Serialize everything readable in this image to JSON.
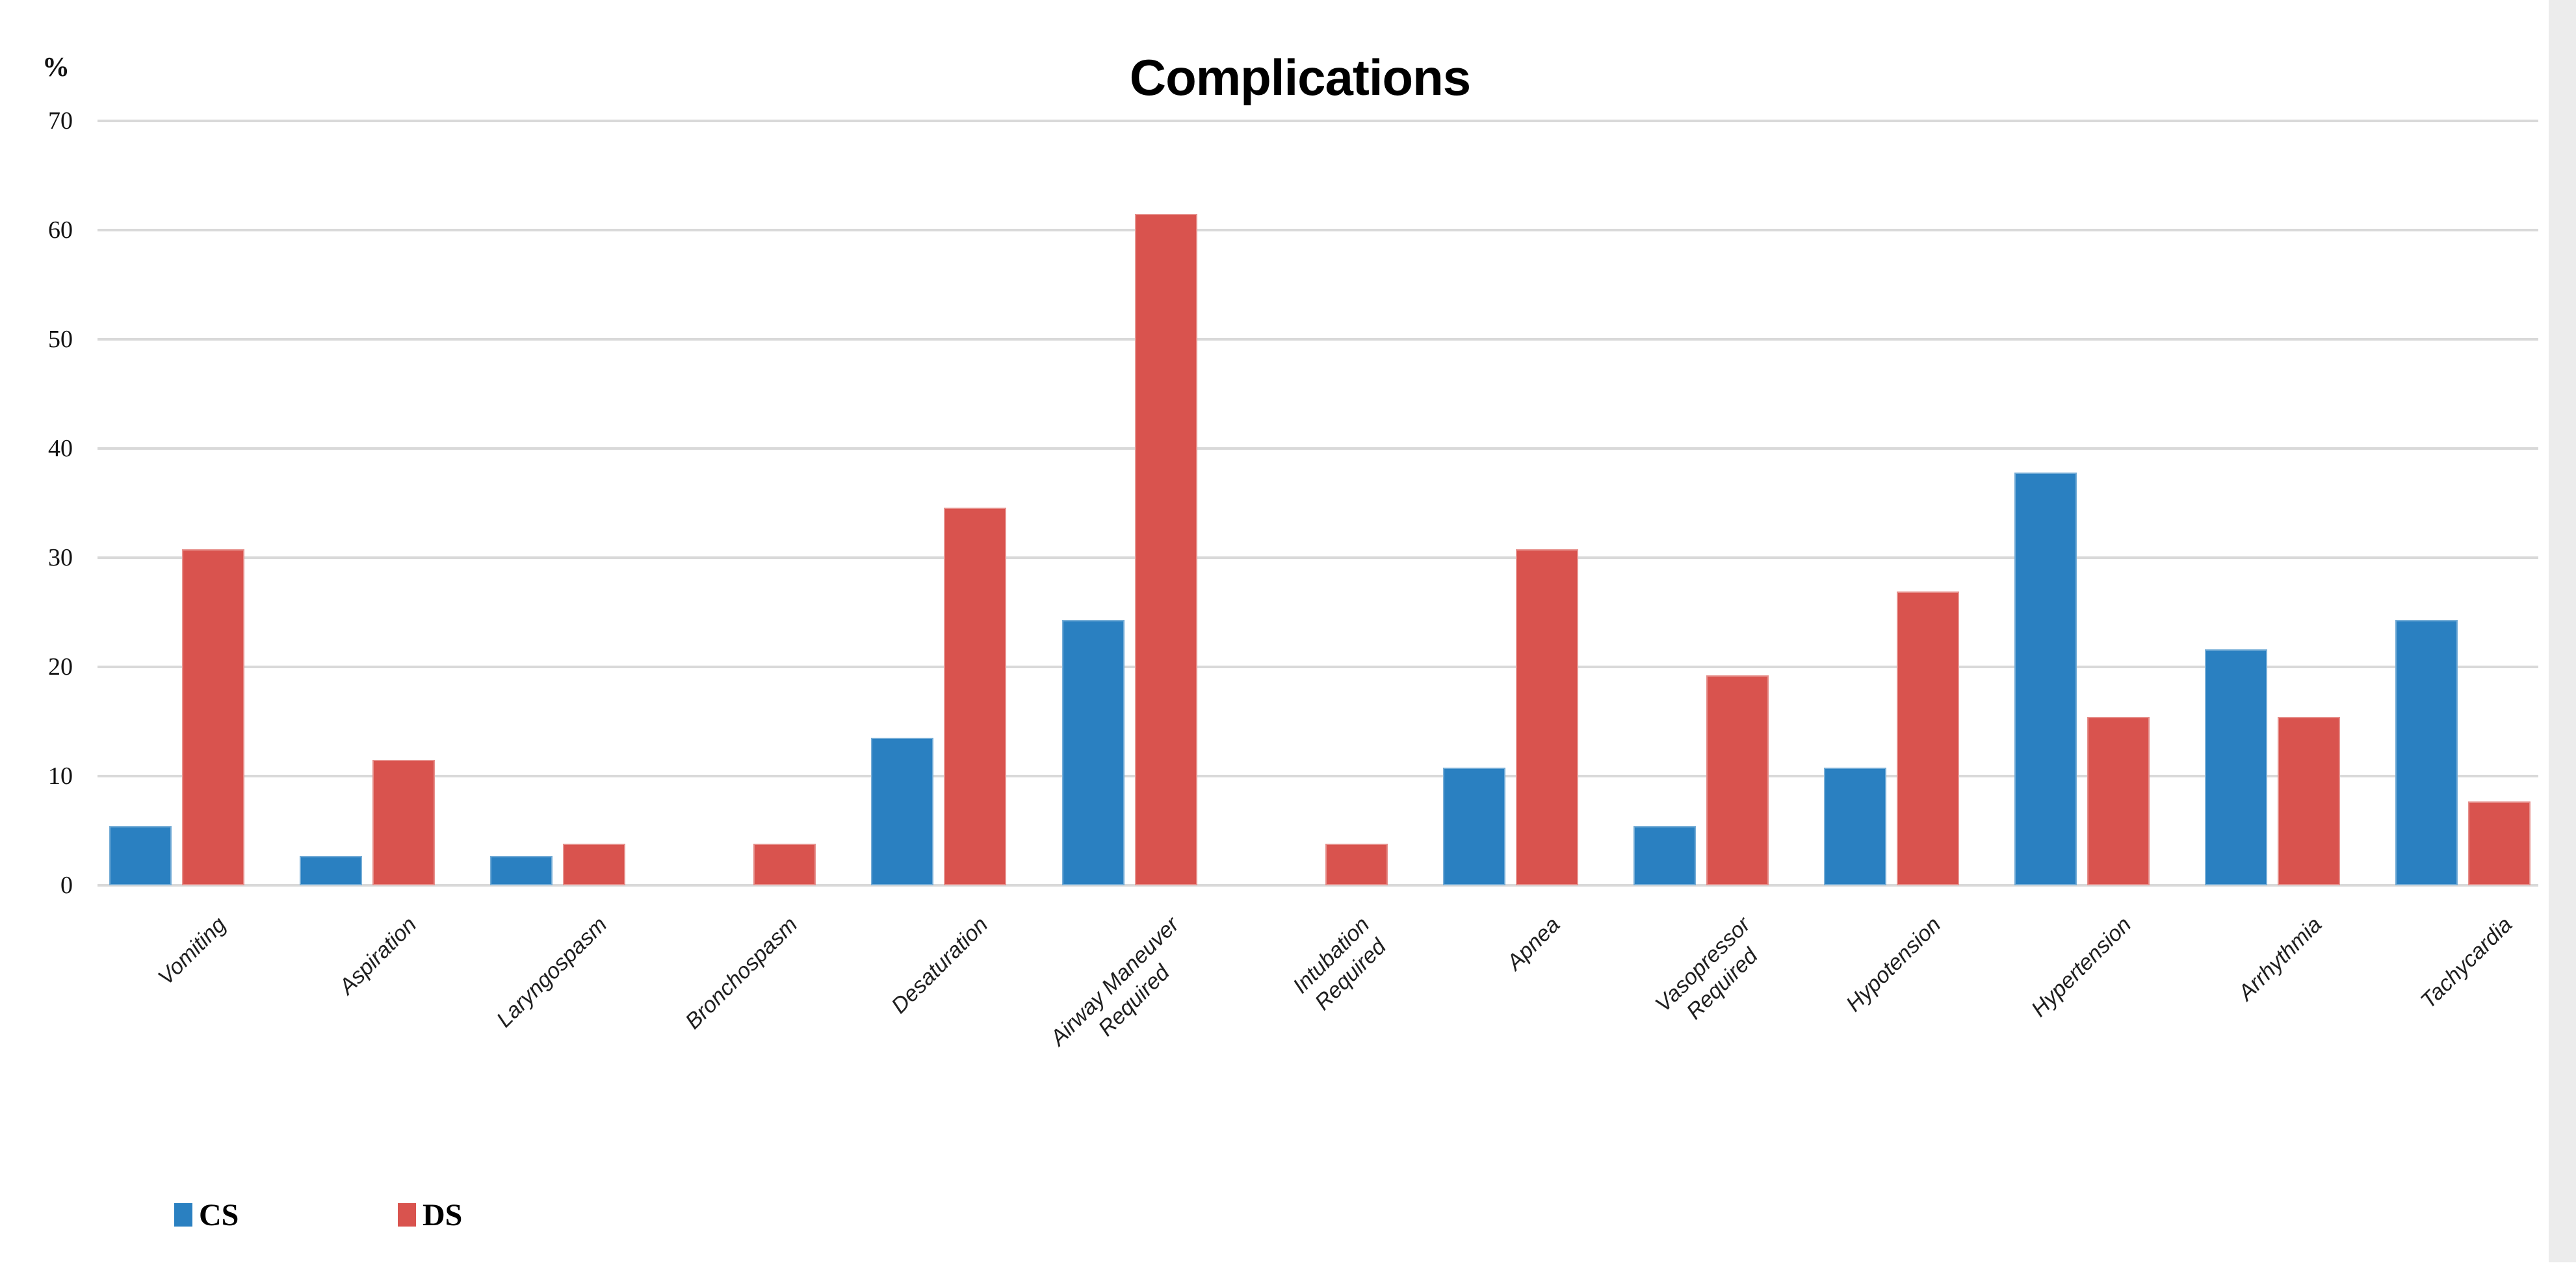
{
  "chart_data": {
    "type": "bar",
    "title": "Complications",
    "y_axis_unit_label": "%",
    "categories": [
      "Vomiting",
      "Aspiration",
      "Laryngospasm",
      "Bronchospasm",
      "Desaturation",
      "Airway Maneuver Required",
      "Intubation Required",
      "Apnea",
      "Vasopressor Required",
      "Hypotension",
      "Hypertension",
      "Arrhythmia",
      "Tachycardia"
    ],
    "category_display": [
      "Vomiting",
      "Aspiration",
      "Laryngospasm",
      "Bronchospasm",
      "Desaturation",
      "Airway Maneuver\nRequired",
      "Intubation\nRequired",
      "Apnea",
      "Vasopressor\nRequired",
      "Hypotension",
      "Hypertension",
      "Arrhythmia",
      "Tachycardia"
    ],
    "series": [
      {
        "name": "CS",
        "color": "#2a80c1",
        "values": [
          5.4,
          2.7,
          2.7,
          0,
          13.5,
          24.3,
          0,
          10.8,
          5.4,
          10.8,
          37.8,
          21.6,
          24.3
        ]
      },
      {
        "name": "DS",
        "color": "#d9534e",
        "values": [
          30.8,
          11.5,
          3.8,
          3.8,
          34.6,
          61.5,
          3.8,
          30.8,
          19.2,
          26.9,
          15.4,
          15.4,
          7.7
        ]
      }
    ],
    "ylim": [
      0,
      70
    ],
    "yticks": [
      0,
      10,
      20,
      30,
      40,
      50,
      60,
      70
    ],
    "grid": "horizontal-only",
    "gridline_color": "#d9d9d9",
    "legend_position": "bottom-left"
  },
  "legend": {
    "items": [
      {
        "label": "CS",
        "color": "#2a80c1"
      },
      {
        "label": "DS",
        "color": "#d9534e"
      }
    ]
  }
}
